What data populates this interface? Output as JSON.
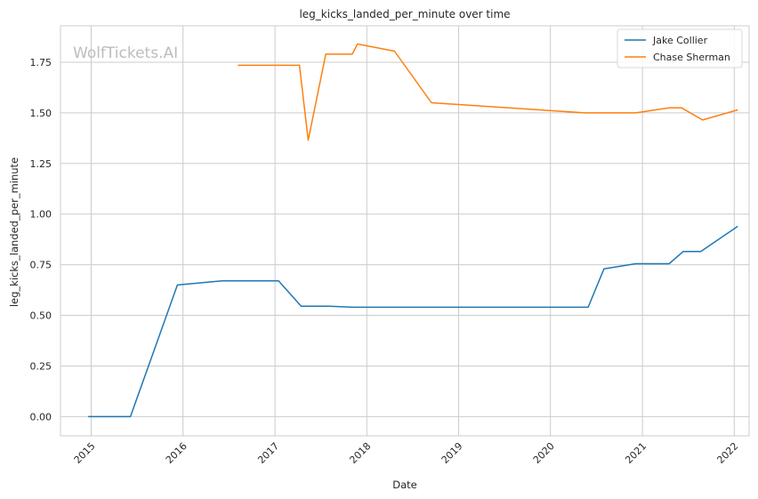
{
  "chart_data": {
    "type": "line",
    "title": "leg_kicks_landed_per_minute over time",
    "xlabel": "Date",
    "ylabel": "leg_kicks_landed_per_minute",
    "watermark": "WolfTickets.AI",
    "x_ticks": [
      "2015",
      "2016",
      "2017",
      "2018",
      "2019",
      "2020",
      "2021",
      "2022"
    ],
    "y_ticks": [
      "0.00",
      "0.25",
      "0.50",
      "0.75",
      "1.00",
      "1.25",
      "1.50",
      "1.75"
    ],
    "xlim": [
      "2014-09-01",
      "2022-03-01"
    ],
    "ylim": [
      -0.095,
      1.93
    ],
    "grid": true,
    "legend_position": "top-right",
    "series": [
      {
        "name": "Jake Collier",
        "color": "#1f77b4",
        "points": [
          [
            "2014-12-20",
            0.0
          ],
          [
            "2015-06-06",
            0.0
          ],
          [
            "2015-12-10",
            0.65
          ],
          [
            "2016-06-04",
            0.67
          ],
          [
            "2017-01-15",
            0.67
          ],
          [
            "2017-04-15",
            0.545
          ],
          [
            "2017-08-01",
            0.545
          ],
          [
            "2017-11-11",
            0.54
          ],
          [
            "2020-05-30",
            0.54
          ],
          [
            "2020-08-01",
            0.73
          ],
          [
            "2020-12-05",
            0.755
          ],
          [
            "2021-04-17",
            0.755
          ],
          [
            "2021-06-12",
            0.815
          ],
          [
            "2021-08-21",
            0.815
          ],
          [
            "2022-01-15",
            0.94
          ]
        ]
      },
      {
        "name": "Chase Sherman",
        "color": "#ff7f0e",
        "points": [
          [
            "2016-08-06",
            1.735
          ],
          [
            "2017-04-08",
            1.735
          ],
          [
            "2017-05-13",
            1.365
          ],
          [
            "2017-07-22",
            1.79
          ],
          [
            "2017-11-04",
            1.79
          ],
          [
            "2017-11-25",
            1.84
          ],
          [
            "2018-04-21",
            1.805
          ],
          [
            "2018-09-15",
            1.55
          ],
          [
            "2020-05-16",
            1.5
          ],
          [
            "2020-12-05",
            1.5
          ],
          [
            "2021-04-17",
            1.525
          ],
          [
            "2021-06-05",
            1.525
          ],
          [
            "2021-08-28",
            1.465
          ],
          [
            "2022-01-15",
            1.515
          ]
        ]
      }
    ]
  }
}
